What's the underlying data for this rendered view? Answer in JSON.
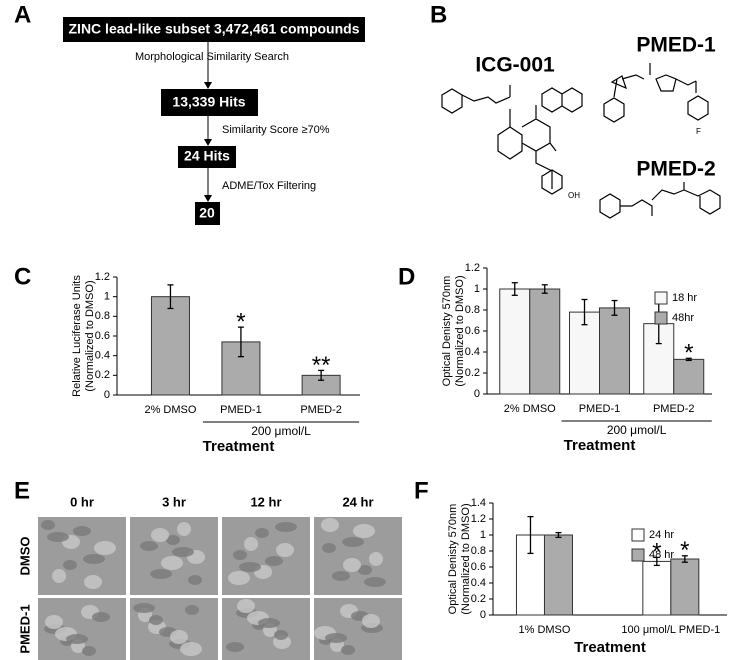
{
  "panel_labels": [
    "A",
    "B",
    "C",
    "D",
    "E",
    "F"
  ],
  "flowchart": {
    "steps": [
      "ZINC lead-like subset 3,472,461 compounds",
      "13,339 Hits",
      "24 Hits",
      "20"
    ],
    "filters": [
      "Morphological Similarity Search",
      "Similarity Score ≥70%",
      "ADME/Tox Filtering"
    ]
  },
  "structures": [
    {
      "name": "ICG-001",
      "atoms": [
        "OH"
      ]
    },
    {
      "name": "PMED-1",
      "atoms": [
        "F"
      ]
    },
    {
      "name": "PMED-2"
    }
  ],
  "microscopy": {
    "timepoints": [
      "0 hr",
      "3 hr",
      "12 hr",
      "24 hr"
    ],
    "rows": [
      "DMSO",
      "PMED-1"
    ]
  },
  "chart_data": [
    {
      "type": "bar",
      "ylabel": [
        "Relative Luciferase Units",
        "(Normalized to DMSO)"
      ],
      "xlabel": "Treatment",
      "group_label": "200 μmol/L",
      "categories": [
        "2% DMSO",
        "PMED-1",
        "PMED-2"
      ],
      "values": [
        1.0,
        0.54,
        0.2
      ],
      "errors": [
        0.12,
        0.15,
        0.05
      ],
      "significance": [
        null,
        "*",
        "**"
      ],
      "color": "#ababab",
      "ylim": [
        0,
        1.2
      ],
      "yticks": [
        0,
        0.2,
        0.4,
        0.6,
        0.8,
        1,
        1.2
      ]
    },
    {
      "type": "bar",
      "ylabel": [
        "Optical Denisty 570nm",
        "(Normalized to DMSO)"
      ],
      "xlabel": "Treatment",
      "group_label": "200 μmol/L",
      "categories": [
        "2% DMSO",
        "PMED-1",
        "PMED-2"
      ],
      "series": [
        {
          "name": "18 hr",
          "color": "#f7f7f7",
          "values": [
            1.0,
            0.78,
            0.67
          ],
          "errors": [
            0.06,
            0.12,
            0.19
          ],
          "significance": [
            null,
            null,
            null
          ]
        },
        {
          "name": "48hr",
          "color": "#ababab",
          "values": [
            1.0,
            0.82,
            0.33
          ],
          "errors": [
            0.04,
            0.07,
            0.01
          ],
          "significance": [
            null,
            null,
            "*"
          ]
        }
      ],
      "ylim": [
        0,
        1.2
      ],
      "yticks": [
        0,
        0.2,
        0.4,
        0.6,
        0.8,
        1,
        1.2
      ],
      "legend": "upper right"
    },
    {
      "type": "bar",
      "ylabel": [
        "Optical Denisty 570nm",
        "(Normalized to DMSO)"
      ],
      "xlabel": "Treatment",
      "categories": [
        "1% DMSO",
        "100 μmol/L PMED-1"
      ],
      "series": [
        {
          "name": "24 hr",
          "color": "#ffffff",
          "values": [
            1.0,
            0.67
          ],
          "errors": [
            0.23,
            0.05
          ],
          "significance": [
            null,
            "*"
          ]
        },
        {
          "name": "48 hr",
          "color": "#ababab",
          "values": [
            1.0,
            0.7
          ],
          "errors": [
            0.03,
            0.04
          ],
          "significance": [
            null,
            "*"
          ]
        }
      ],
      "ylim": [
        0,
        1.4
      ],
      "yticks": [
        0,
        0.2,
        0.4,
        0.6,
        0.8,
        1,
        1.2,
        1.4
      ],
      "legend": "upper right"
    }
  ]
}
